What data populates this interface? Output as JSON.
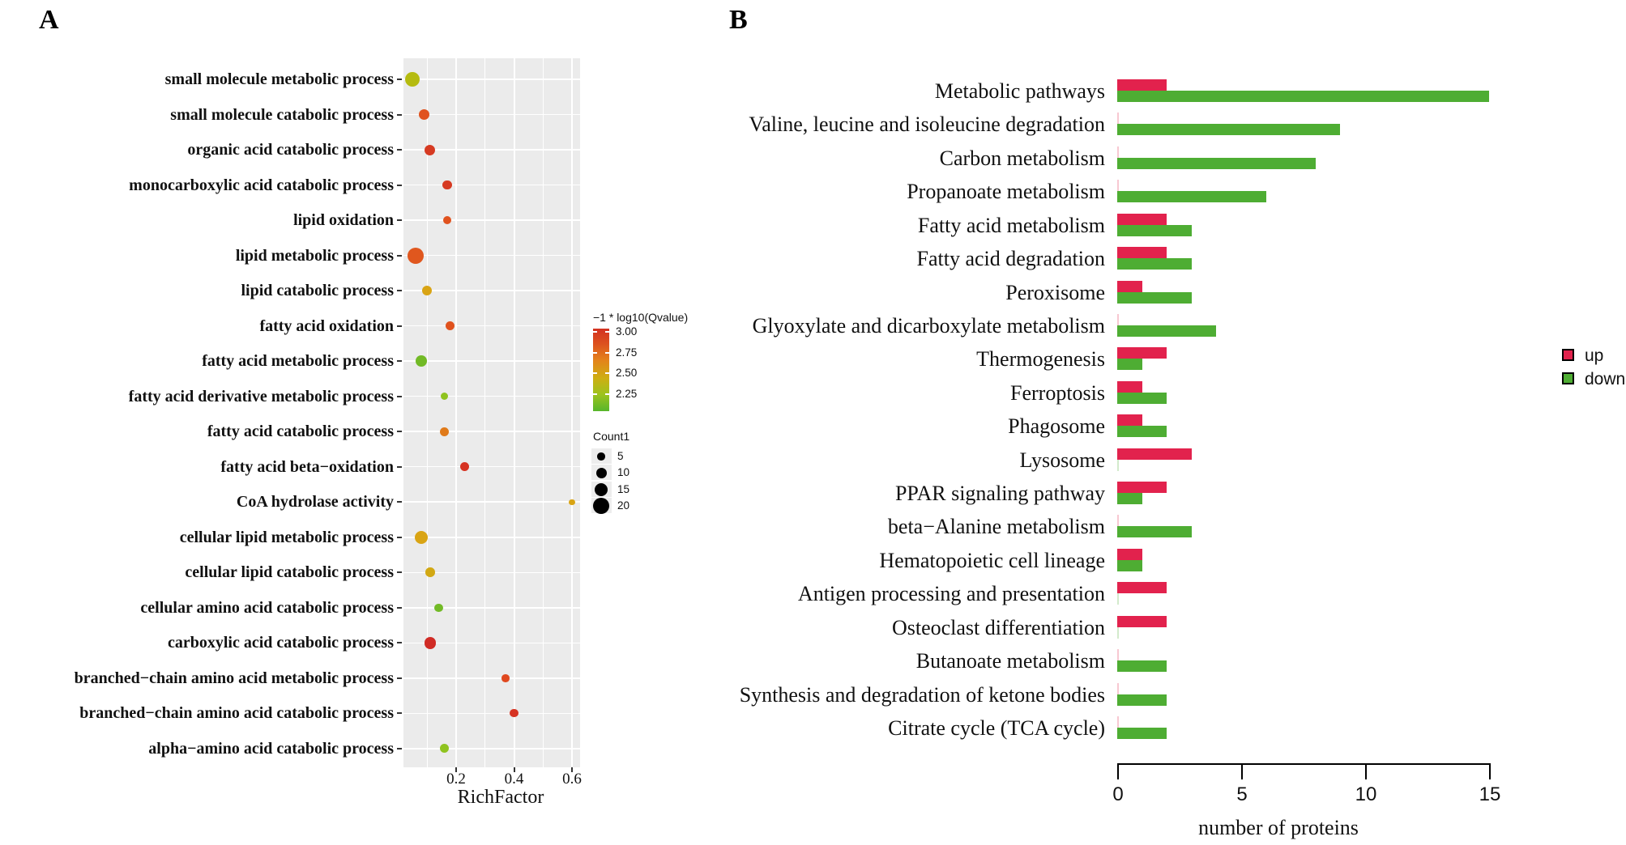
{
  "figure": {
    "panel_a_label": "A",
    "panel_b_label": "B"
  },
  "chart_data": [
    {
      "type": "scatter",
      "panel": "A",
      "xlabel": "RichFactor",
      "x_ticks": [
        0.2,
        0.4,
        0.6
      ],
      "x_tick_labels": [
        "0.2",
        "0.4",
        "0.6"
      ],
      "xlim": [
        0.018,
        0.617
      ],
      "grid": true,
      "color_legend": {
        "title": "−1 * log10(Qvalue)",
        "tick_labels": [
          "3.00",
          "2.75",
          "2.50",
          "2.25"
        ],
        "top_color": "#d33120",
        "bottom_color": "#57b62b"
      },
      "size_legend": {
        "title": "Count1",
        "sizes": [
          5,
          10,
          15,
          20
        ]
      },
      "points": [
        {
          "label": "small molecule metabolic process",
          "rich_factor": 0.05,
          "count": 17,
          "color": "#b5bb10"
        },
        {
          "label": "small molecule catabolic process",
          "rich_factor": 0.09,
          "count": 10,
          "color": "#e0521e"
        },
        {
          "label": "organic acid catabolic process",
          "rich_factor": 0.11,
          "count": 10,
          "color": "#d63a22"
        },
        {
          "label": "monocarboxylic acid catabolic process",
          "rich_factor": 0.17,
          "count": 8,
          "color": "#d63a22"
        },
        {
          "label": "lipid oxidation",
          "rich_factor": 0.17,
          "count": 6,
          "color": "#e0521e"
        },
        {
          "label": "lipid metabolic process",
          "rich_factor": 0.06,
          "count": 20,
          "color": "#e0571e"
        },
        {
          "label": "lipid catabolic process",
          "rich_factor": 0.1,
          "count": 9,
          "color": "#d9a414"
        },
        {
          "label": "fatty acid oxidation",
          "rich_factor": 0.18,
          "count": 7,
          "color": "#e0521e"
        },
        {
          "label": "fatty acid metabolic process",
          "rich_factor": 0.08,
          "count": 11,
          "color": "#72ba26"
        },
        {
          "label": "fatty acid derivative metabolic process",
          "rich_factor": 0.16,
          "count": 5,
          "color": "#8fc31f"
        },
        {
          "label": "fatty acid catabolic process",
          "rich_factor": 0.16,
          "count": 7,
          "color": "#e07a19"
        },
        {
          "label": "fatty acid beta−oxidation",
          "rich_factor": 0.23,
          "count": 7,
          "color": "#d63322"
        },
        {
          "label": "CoA hydrolase activity",
          "rich_factor": 0.6,
          "count": 2,
          "color": "#d9a414"
        },
        {
          "label": "cellular lipid metabolic process",
          "rich_factor": 0.08,
          "count": 15,
          "color": "#d9a414"
        },
        {
          "label": "cellular lipid catabolic process",
          "rich_factor": 0.11,
          "count": 8,
          "color": "#d2a813"
        },
        {
          "label": "cellular amino acid catabolic process",
          "rich_factor": 0.14,
          "count": 6,
          "color": "#72ba26"
        },
        {
          "label": "carboxylic acid catabolic process",
          "rich_factor": 0.11,
          "count": 12,
          "color": "#d02b25"
        },
        {
          "label": "branched−chain amino acid metabolic process",
          "rich_factor": 0.37,
          "count": 5,
          "color": "#e0481f"
        },
        {
          "label": "branched−chain amino acid catabolic process",
          "rich_factor": 0.4,
          "count": 6,
          "color": "#d63322"
        },
        {
          "label": "alpha−amino acid catabolic process",
          "rich_factor": 0.16,
          "count": 7,
          "color": "#8fc31f"
        }
      ]
    },
    {
      "type": "bar",
      "panel": "B",
      "orientation": "horizontal",
      "xlabel": "number of proteins",
      "x_ticks": [
        0,
        5,
        10,
        15
      ],
      "x_tick_labels": [
        "0",
        "5",
        "10",
        "15"
      ],
      "xlim": [
        0,
        15
      ],
      "legend": [
        {
          "label": "up",
          "color": "#e2224d"
        },
        {
          "label": "down",
          "color": "#4ead33"
        }
      ],
      "categories": [
        "Metabolic pathways",
        "Valine, leucine and isoleucine degradation",
        "Carbon metabolism",
        "Propanoate metabolism",
        "Fatty acid metabolism",
        "Fatty acid degradation",
        "Peroxisome",
        "Glyoxylate and dicarboxylate metabolism",
        "Thermogenesis",
        "Ferroptosis",
        "Phagosome",
        "Lysosome",
        "PPAR signaling pathway",
        "beta−Alanine metabolism",
        "Hematopoietic cell lineage",
        "Antigen processing and presentation",
        "Osteoclast differentiation",
        "Butanoate metabolism",
        "Synthesis and degradation of ketone bodies",
        "Citrate cycle (TCA cycle)"
      ],
      "series": [
        {
          "name": "up",
          "values": [
            2,
            0,
            0,
            0,
            2,
            2,
            1,
            0,
            2,
            1,
            1,
            3,
            2,
            0,
            1,
            2,
            2,
            0,
            0,
            0
          ]
        },
        {
          "name": "down",
          "values": [
            15,
            9,
            8,
            6,
            3,
            3,
            3,
            4,
            1,
            2,
            2,
            0,
            1,
            3,
            1,
            0,
            0,
            2,
            2,
            2
          ]
        }
      ]
    }
  ]
}
